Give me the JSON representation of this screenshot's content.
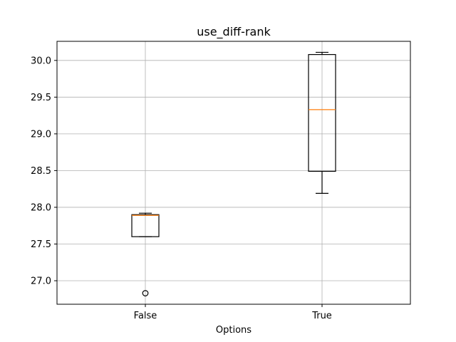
{
  "chart_data": {
    "type": "box",
    "title": "use_diff-rank",
    "xlabel": "Options",
    "ylabel": "",
    "ylim": [
      26.68,
      30.26
    ],
    "yticks": [
      27.0,
      27.5,
      28.0,
      28.5,
      29.0,
      29.5,
      30.0
    ],
    "ytick_labels": [
      "27.0",
      "27.5",
      "28.0",
      "28.5",
      "29.0",
      "29.5",
      "30.0"
    ],
    "categories": [
      "False",
      "True"
    ],
    "grid": true,
    "boxes": [
      {
        "category": "False",
        "whisker_low": 27.6,
        "q1": 27.6,
        "median": 27.89,
        "q3": 27.9,
        "whisker_high": 27.92,
        "outliers": [
          26.83
        ]
      },
      {
        "category": "True",
        "whisker_low": 28.19,
        "q1": 28.49,
        "median": 29.33,
        "q3": 30.08,
        "whisker_high": 30.11,
        "outliers": []
      }
    ],
    "colors": {
      "box": "#000000",
      "median": "#ff7f0e",
      "grid": "#b0b0b0",
      "outlier": "#000000"
    }
  }
}
